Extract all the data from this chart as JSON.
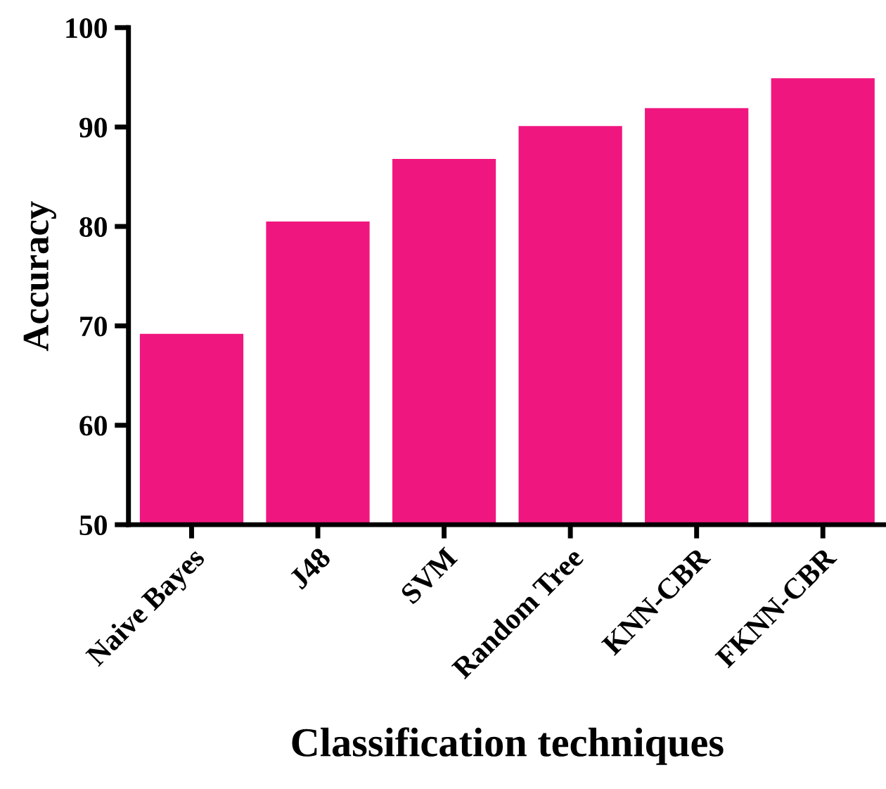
{
  "chart_data": {
    "type": "bar",
    "xlabel": "Classification techniques",
    "ylabel": "Accuracy",
    "categories": [
      "Naive Bayes",
      "J48",
      "SVM",
      "Random Tree",
      "KNN-CBR",
      "FKNN-CBR"
    ],
    "values": [
      69.2,
      80.5,
      86.8,
      90.1,
      91.9,
      94.9
    ],
    "color": "#f0167f",
    "ylim": [
      50,
      100
    ],
    "yticks": [
      50,
      60,
      70,
      80,
      90,
      100
    ],
    "grid": false
  }
}
